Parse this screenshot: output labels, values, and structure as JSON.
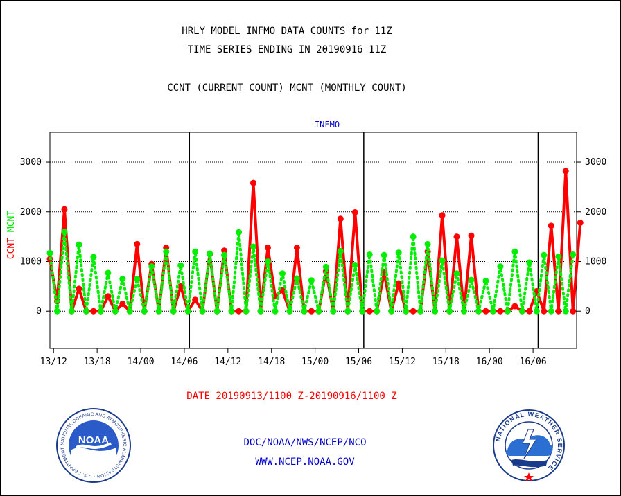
{
  "header": {
    "title_line1": "HRLY MODEL INFMO DATA COUNTS for 11Z",
    "title_line2": "TIME SERIES ENDING IN 20190916 11Z",
    "subtitle": "CCNT (CURRENT COUNT) MCNT (MONTHLY COUNT)"
  },
  "footer": {
    "date_range": "DATE 20190913/1100 Z-20190916/1100 Z",
    "agency": "DOC/NOAA/NWS/NCEP/NCO",
    "website": "WWW.NCEP.NOAA.GOV"
  },
  "logos": {
    "noaa": {
      "center_text": "NOAA",
      "ring_text": "NATIONAL OCEANIC AND ATMOSPHERIC ADMINISTRATION · U.S. DEPARTMENT OF COMMERCE"
    },
    "nws": {
      "ring_text": "NATIONAL WEATHER SERVICE"
    }
  },
  "colors": {
    "ccnt": "#ff0000",
    "mcnt": "#00ee00",
    "accent_blue": "#0000cc",
    "grid": "#000000"
  },
  "chart_data": {
    "type": "line",
    "title": "INFMO",
    "ylabel_parts": [
      "CCNT",
      "MCNT"
    ],
    "ylim": [
      -750,
      3600
    ],
    "yticks": [
      0,
      1000,
      2000,
      3000
    ],
    "xlim": [
      0,
      72.5
    ],
    "x_ticks": [
      {
        "x": 0.5,
        "label": "13/12"
      },
      {
        "x": 6.5,
        "label": "13/18"
      },
      {
        "x": 12.5,
        "label": "14/00"
      },
      {
        "x": 18.5,
        "label": "14/06"
      },
      {
        "x": 24.5,
        "label": "14/12"
      },
      {
        "x": 30.5,
        "label": "14/18"
      },
      {
        "x": 36.5,
        "label": "15/00"
      },
      {
        "x": 42.5,
        "label": "15/06"
      },
      {
        "x": 48.5,
        "label": "15/12"
      },
      {
        "x": 54.5,
        "label": "15/18"
      },
      {
        "x": 60.5,
        "label": "16/00"
      },
      {
        "x": 66.5,
        "label": "16/06"
      }
    ],
    "day_boundaries": [
      19.2,
      43.2,
      67.2
    ],
    "series": [
      {
        "name": "CCNT",
        "values": [
          1050,
          200,
          2050,
          0,
          450,
          0,
          0,
          0,
          300,
          0,
          150,
          0,
          1350,
          0,
          950,
          0,
          1280,
          0,
          500,
          0,
          230,
          0,
          1150,
          0,
          1220,
          0,
          0,
          0,
          2580,
          0,
          1280,
          300,
          420,
          0,
          1280,
          0,
          0,
          0,
          800,
          0,
          1860,
          0,
          1990,
          0,
          0,
          0,
          780,
          0,
          560,
          0,
          0,
          0,
          1200,
          0,
          1930,
          0,
          1500,
          0,
          1520,
          0,
          0,
          0,
          0,
          0,
          100,
          0,
          0,
          400,
          0,
          1720,
          0,
          2820,
          0,
          1780
        ]
      },
      {
        "name": "MCNT",
        "values": [
          1170,
          0,
          1600,
          0,
          1340,
          0,
          1090,
          0,
          770,
          0,
          650,
          0,
          650,
          0,
          900,
          0,
          1200,
          0,
          920,
          0,
          1200,
          0,
          1160,
          0,
          1130,
          0,
          1590,
          0,
          1300,
          0,
          1000,
          0,
          760,
          0,
          660,
          0,
          620,
          0,
          890,
          0,
          1210,
          0,
          930,
          0,
          1140,
          0,
          1130,
          0,
          1180,
          0,
          1500,
          0,
          1350,
          0,
          1020,
          0,
          760,
          0,
          630,
          0,
          610,
          0,
          900,
          0,
          1200,
          0,
          980,
          0,
          1130,
          0,
          1100,
          0,
          1140
        ]
      }
    ]
  }
}
